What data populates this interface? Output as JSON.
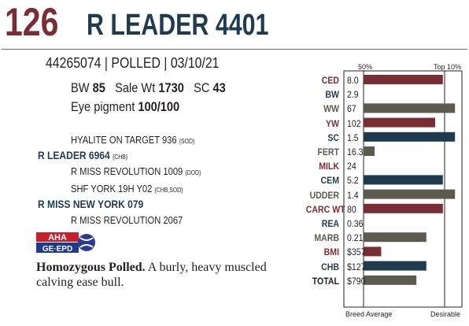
{
  "header": {
    "lot": "126",
    "name": "R LEADER 4401",
    "info1": "44265074 | POLLED | 03/10/21",
    "bw_label": "BW",
    "bw_value": "85",
    "salewt_label": "Sale Wt",
    "salewt_value": "1730",
    "sc_label": "SC",
    "sc_value": "43",
    "eye_label": "Eye pigment",
    "eye_value": "100/100"
  },
  "pedigree": {
    "sire_sire": "HYALITE ON TARGET 936",
    "sire_sire_tag": "{SOD}",
    "sire": "R LEADER 6964",
    "sire_tag": "{CHB}",
    "sire_dam": "R MISS REVOLUTION 1009",
    "sire_dam_tag": "{DOD}",
    "dam_sire": "SHF YORK 19H Y02",
    "dam_sire_tag": "{CHB,SOD}",
    "dam": "R MISS NEW YORK 079",
    "dam_dam": "R MISS REVOLUTION 2067"
  },
  "logo": {
    "line1": "AHA",
    "line2": "GE·EPD"
  },
  "description": {
    "bold": "Homozygous Polled.",
    "rest": " A burly, heavy muscled calving ease bull."
  },
  "chart_data": {
    "type": "bar",
    "orientation": "horizontal",
    "top_labels": [
      "50%",
      "Top 10%"
    ],
    "bottom_labels": [
      "Breed Average",
      "Desirable"
    ],
    "scale": "0 = breed average, 1 = desirable",
    "categories": [
      "CED",
      "BW",
      "WW",
      "YW",
      "SC",
      "FERT",
      "MILK",
      "CEM",
      "UDDER",
      "CARC WT",
      "REA",
      "MARB",
      "BMI",
      "CHB",
      "TOTAL"
    ],
    "epds": [
      "8.0",
      "2.9",
      "67",
      "102",
      "1.5",
      "16.3",
      "24",
      "5.2",
      "1.4",
      "80",
      "0.36",
      "0.21",
      "$357",
      "$127",
      "$790"
    ],
    "values": [
      0.72,
      0,
      0.83,
      0.65,
      0.83,
      0.1,
      0,
      0.72,
      0.83,
      0.72,
      0,
      0.57,
      0.16,
      0.57,
      0.48
    ],
    "bar_colors": [
      "#7a2e33",
      "#1f3b4f",
      "#5b5a4f",
      "#7a2e33",
      "#1f3b4f",
      "#5b5a4f",
      "#7a2e33",
      "#1f3b4f",
      "#5b5a4f",
      "#7a2e33",
      "#1f3b4f",
      "#5b5a4f",
      "#7a2e33",
      "#1f3b4f",
      "#5b5a4f"
    ],
    "label_colors": [
      "#7a2e33",
      "#1f3b4f",
      "#5b5a4f",
      "#7a2e33",
      "#1f3b4f",
      "#5b5a4f",
      "#7a2e33",
      "#1f3b4f",
      "#5b5a4f",
      "#7a2e33",
      "#1f3b4f",
      "#5b5a4f",
      "#7a2e33",
      "#1f3b4f",
      "#231f20"
    ]
  }
}
